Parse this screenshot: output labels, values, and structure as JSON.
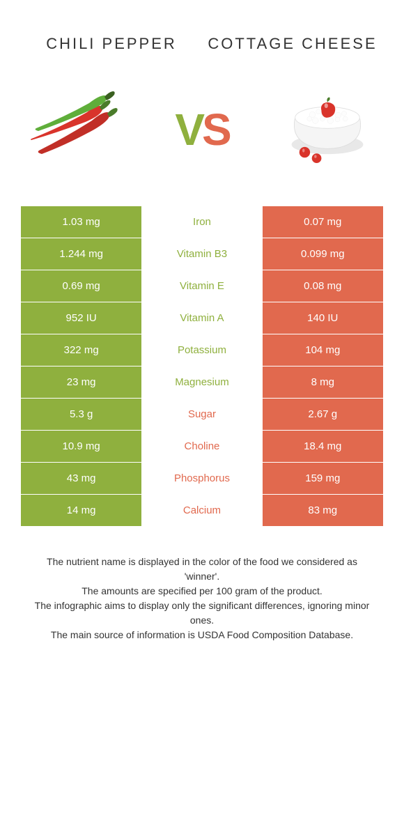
{
  "header": {
    "left_title": "Chili pepper",
    "right_title": "Cottage cheese",
    "vs_v": "V",
    "vs_s": "S"
  },
  "colors": {
    "left": "#8fb03e",
    "right": "#e1694e",
    "bg": "#ffffff",
    "text": "#333333"
  },
  "table": {
    "rows": [
      {
        "left": "1.03 mg",
        "label": "Iron",
        "right": "0.07 mg",
        "winner": "left"
      },
      {
        "left": "1.244 mg",
        "label": "Vitamin B3",
        "right": "0.099 mg",
        "winner": "left"
      },
      {
        "left": "0.69 mg",
        "label": "Vitamin E",
        "right": "0.08 mg",
        "winner": "left"
      },
      {
        "left": "952 IU",
        "label": "Vitamin A",
        "right": "140 IU",
        "winner": "left"
      },
      {
        "left": "322 mg",
        "label": "Potassium",
        "right": "104 mg",
        "winner": "left"
      },
      {
        "left": "23 mg",
        "label": "Magnesium",
        "right": "8 mg",
        "winner": "left"
      },
      {
        "left": "5.3 g",
        "label": "Sugar",
        "right": "2.67 g",
        "winner": "right"
      },
      {
        "left": "10.9 mg",
        "label": "Choline",
        "right": "18.4 mg",
        "winner": "right"
      },
      {
        "left": "43 mg",
        "label": "Phosphorus",
        "right": "159 mg",
        "winner": "right"
      },
      {
        "left": "14 mg",
        "label": "Calcium",
        "right": "83 mg",
        "winner": "right"
      }
    ]
  },
  "footer": {
    "line1": "The nutrient name is displayed in the color of the food we considered as 'winner'.",
    "line2": "The amounts are specified per 100 gram of the product.",
    "line3": "The infographic aims to display only the significant differences, ignoring minor ones.",
    "line4": "The main source of information is USDA Food Composition Database."
  }
}
